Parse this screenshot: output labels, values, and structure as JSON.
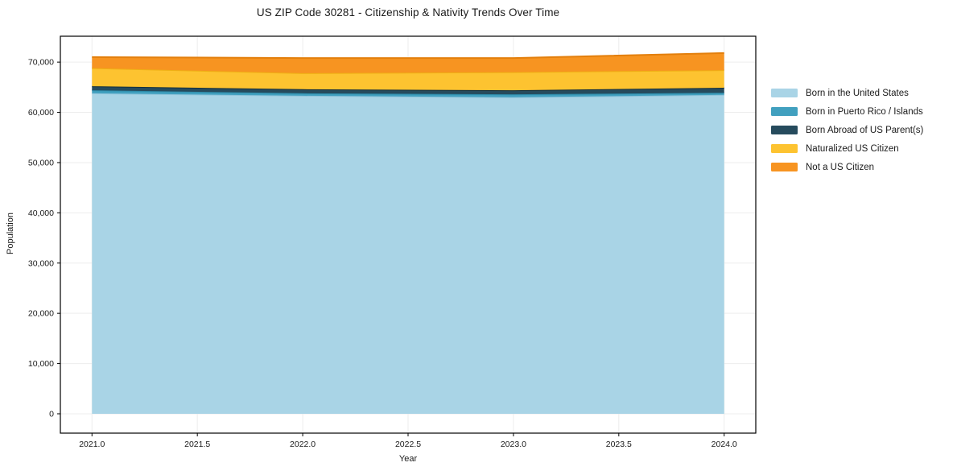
{
  "chart_data": {
    "type": "area",
    "stacked": true,
    "title": "US ZIP Code 30281 - Citizenship & Nativity Trends Over Time",
    "xlabel": "Year",
    "ylabel": "Population",
    "x": [
      2021,
      2022,
      2023,
      2024
    ],
    "series": [
      {
        "name": "Born in the United States",
        "color": "#a9d4e6",
        "edge_color": "#8ec3da",
        "values": [
          63800,
          63300,
          63000,
          63500
        ]
      },
      {
        "name": "Born in Puerto Rico / Islands",
        "color": "#41a0bf",
        "edge_color": "#2d8aa8",
        "values": [
          600,
          500,
          600,
          400
        ]
      },
      {
        "name": "Born Abroad of US Parent(s)",
        "color": "#264b5d",
        "edge_color": "#16303d",
        "values": [
          800,
          800,
          800,
          1000
        ]
      },
      {
        "name": "Naturalized US Citizen",
        "color": "#fdc330",
        "edge_color": "#efaf14",
        "values": [
          3600,
          3200,
          3600,
          3500
        ]
      },
      {
        "name": "Not a US Citizen",
        "color": "#f79421",
        "edge_color": "#e37f0c",
        "values": [
          2200,
          3000,
          2800,
          3400
        ]
      }
    ],
    "totals": [
      71000,
      70800,
      70800,
      71800
    ],
    "xlim": [
      2020.85,
      2024.15
    ],
    "ylim": [
      -3850,
      75150
    ],
    "grid": true,
    "legend_position": "right"
  },
  "x_axis": {
    "label": "Year",
    "tick_values": [
      2021.0,
      2021.5,
      2022.0,
      2022.5,
      2023.0,
      2023.5,
      2024.0
    ],
    "tick_labels": [
      "2021.0",
      "2021.5",
      "2022.0",
      "2022.5",
      "2023.0",
      "2023.5",
      "2024.0"
    ]
  },
  "y_axis": {
    "label": "Population",
    "tick_values": [
      0,
      10000,
      20000,
      30000,
      40000,
      50000,
      60000,
      70000
    ],
    "tick_labels": [
      "0",
      "10,000",
      "20,000",
      "30,000",
      "40,000",
      "50,000",
      "60,000",
      "70,000"
    ]
  },
  "style": {
    "grid_color": "#ededed",
    "spine_color": "#000000",
    "tick_text_color": "#1a1a1a",
    "background_color": "#ffffff"
  }
}
